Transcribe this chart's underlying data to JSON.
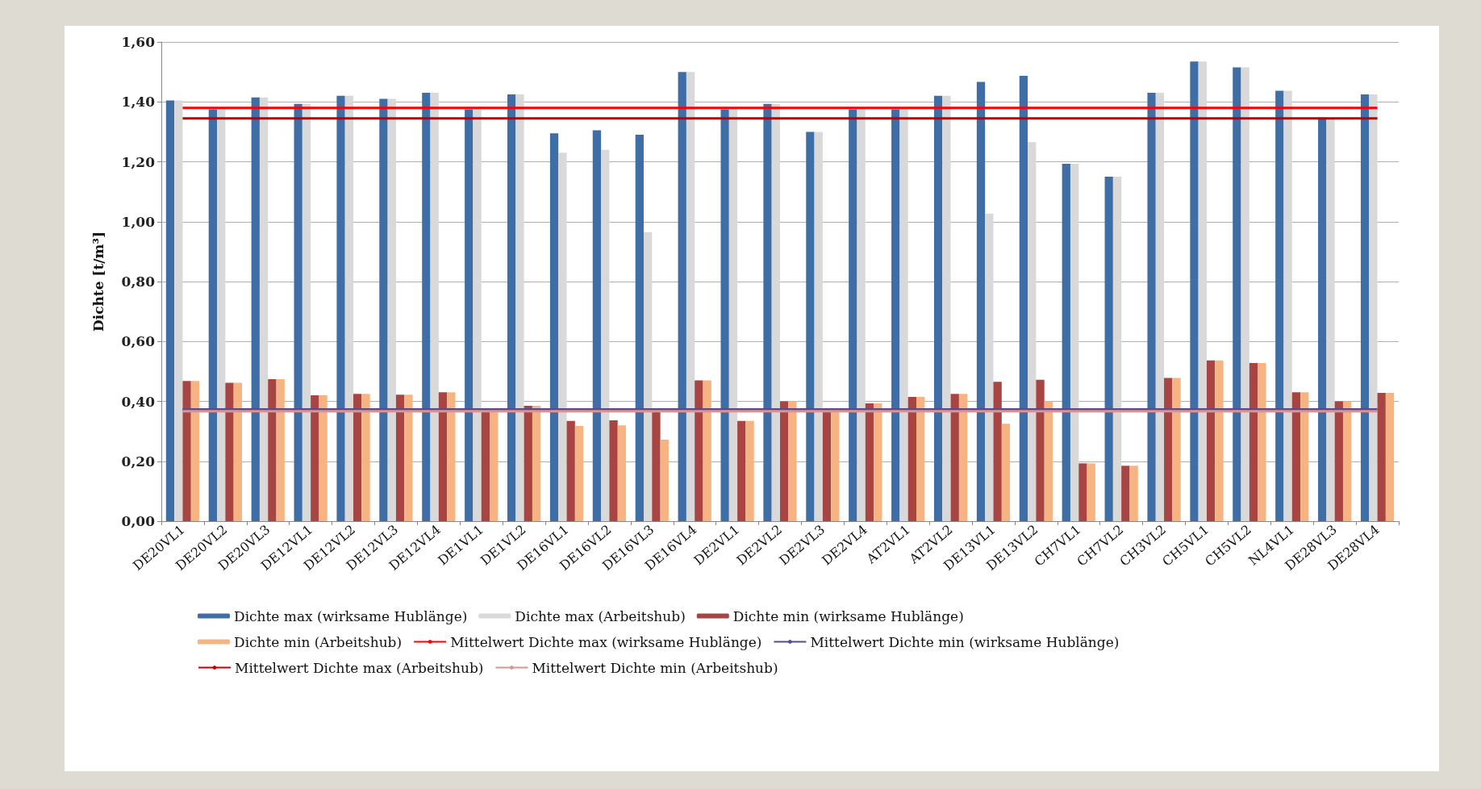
{
  "chart_data": {
    "type": "bar",
    "ylabel": "Dichte [t/m³]",
    "categories": [
      "DE20VL1",
      "DE20VL2",
      "DE20VL3",
      "DE12VL1",
      "DE12VL2",
      "DE12VL3",
      "DE12VL4",
      "DE1VL1",
      "DE1VL2",
      "DE16VL1",
      "DE16VL2",
      "DE16VL3",
      "DE16VL4",
      "DE2VL1",
      "DE2VL2",
      "DE2VL3",
      "DE2VL4",
      "AT2VL1",
      "AT2VL2",
      "DE13VL1",
      "DE13VL2",
      "CH7VL1",
      "CH7VL2",
      "CH3VL2",
      "CH5VL1",
      "CH5VL2",
      "NL4VL1",
      "DE28VL3",
      "DE28VL4"
    ],
    "series": [
      {
        "name": "Dichte max (wirksame Hublänge)",
        "color": "#3f6ea6",
        "values": [
          1.405,
          1.375,
          1.415,
          1.393,
          1.42,
          1.41,
          1.43,
          1.375,
          1.425,
          1.295,
          1.305,
          1.29,
          1.5,
          1.375,
          1.393,
          1.3,
          1.375,
          1.375,
          1.42,
          1.467,
          1.487,
          1.193,
          1.15,
          1.43,
          1.535,
          1.515,
          1.437,
          1.345,
          1.425
        ]
      },
      {
        "name": "Dichte max (Arbeitshub)",
        "color": "#d9d9d9",
        "values": [
          1.405,
          1.375,
          1.415,
          1.393,
          1.42,
          1.41,
          1.43,
          1.375,
          1.425,
          1.23,
          1.24,
          0.965,
          1.5,
          1.375,
          1.393,
          1.3,
          1.375,
          1.375,
          1.42,
          1.027,
          1.265,
          1.193,
          1.15,
          1.43,
          1.535,
          1.515,
          1.437,
          1.345,
          1.425
        ]
      },
      {
        "name": "Dichte min (wirksame Hublänge)",
        "color": "#a84442",
        "values": [
          0.468,
          0.462,
          0.474,
          0.42,
          0.425,
          0.422,
          0.43,
          0.365,
          0.385,
          0.335,
          0.337,
          0.365,
          0.47,
          0.335,
          0.4,
          0.365,
          0.393,
          0.415,
          0.425,
          0.465,
          0.472,
          0.193,
          0.185,
          0.478,
          0.537,
          0.528,
          0.43,
          0.4,
          0.428
        ]
      },
      {
        "name": "Dichte min (Arbeitshub)",
        "color": "#f5b482",
        "values": [
          0.468,
          0.462,
          0.474,
          0.42,
          0.425,
          0.422,
          0.43,
          0.365,
          0.385,
          0.318,
          0.32,
          0.272,
          0.47,
          0.335,
          0.4,
          0.365,
          0.393,
          0.415,
          0.425,
          0.325,
          0.4,
          0.193,
          0.185,
          0.478,
          0.537,
          0.528,
          0.43,
          0.4,
          0.428
        ]
      },
      {
        "name": "Mittelwert Dichte max (wirksame Hublänge)",
        "type": "line",
        "color": "#ff0000",
        "values": [
          1.38,
          1.38,
          1.38,
          1.38,
          1.38,
          1.38,
          1.38,
          1.38,
          1.38,
          1.38,
          1.38,
          1.38,
          1.38,
          1.38,
          1.38,
          1.38,
          1.38,
          1.38,
          1.38,
          1.38,
          1.38,
          1.38,
          1.38,
          1.38,
          1.38,
          1.38,
          1.38,
          1.38,
          1.38
        ]
      },
      {
        "name": "Mittelwert Dichte min (wirksame Hublänge)",
        "type": "line",
        "color": "#5b4a8c",
        "values": [
          0.373,
          0.373,
          0.373,
          0.373,
          0.373,
          0.373,
          0.373,
          0.373,
          0.373,
          0.373,
          0.373,
          0.373,
          0.373,
          0.373,
          0.373,
          0.373,
          0.373,
          0.373,
          0.373,
          0.373,
          0.373,
          0.373,
          0.373,
          0.373,
          0.373,
          0.373,
          0.373,
          0.373,
          0.373
        ]
      },
      {
        "name": "Mittelwert Dichte max (Arbeitshub)",
        "type": "line",
        "color": "#c00000",
        "values": [
          1.345,
          1.345,
          1.345,
          1.345,
          1.345,
          1.345,
          1.345,
          1.345,
          1.345,
          1.345,
          1.345,
          1.345,
          1.345,
          1.345,
          1.345,
          1.345,
          1.345,
          1.345,
          1.345,
          1.345,
          1.345,
          1.345,
          1.345,
          1.345,
          1.345,
          1.345,
          1.345,
          1.345,
          1.345
        ]
      },
      {
        "name": "Mittelwert Dichte min (Arbeitshub)",
        "type": "line",
        "color": "#d99594",
        "values": [
          0.367,
          0.367,
          0.367,
          0.367,
          0.367,
          0.367,
          0.367,
          0.367,
          0.367,
          0.367,
          0.367,
          0.367,
          0.367,
          0.367,
          0.367,
          0.367,
          0.367,
          0.367,
          0.367,
          0.367,
          0.367,
          0.367,
          0.367,
          0.367,
          0.367,
          0.367,
          0.367,
          0.367,
          0.367
        ]
      }
    ],
    "ylim": [
      0,
      1.6
    ],
    "yticks": [
      {
        "value": 0,
        "label": "0,00"
      },
      {
        "value": 0.2,
        "label": "0,20"
      },
      {
        "value": 0.4,
        "label": "0,40"
      },
      {
        "value": 0.6,
        "label": "0,60"
      },
      {
        "value": 0.8,
        "label": "0,80"
      },
      {
        "value": 1,
        "label": "1,00"
      },
      {
        "value": 1.2,
        "label": "1,20"
      },
      {
        "value": 1.4,
        "label": "1,40"
      },
      {
        "value": 1.6,
        "label": "1,60"
      }
    ],
    "grid": "y",
    "legend": "bottom",
    "marker": "none",
    "line_style": "solid"
  }
}
